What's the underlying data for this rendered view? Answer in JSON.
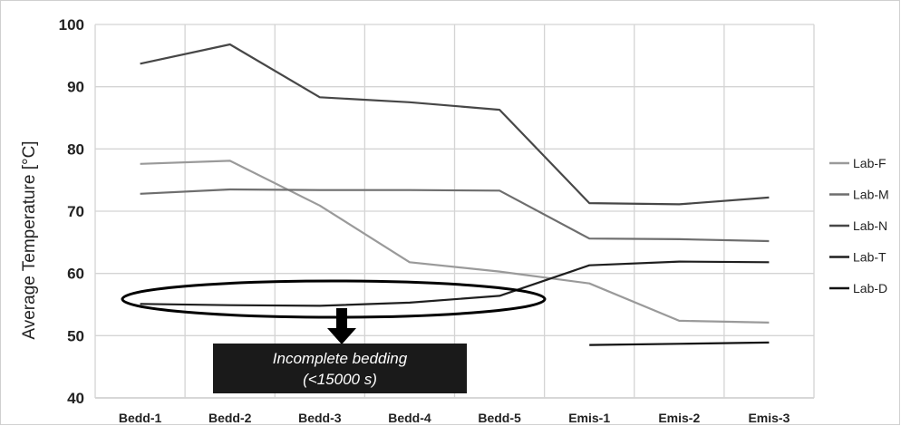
{
  "chart_data": {
    "type": "line",
    "title": "",
    "xlabel": "",
    "ylabel": "Average Temperature  [°C]",
    "ylim": [
      40,
      100
    ],
    "yticks": [
      40,
      50,
      60,
      70,
      80,
      90,
      100
    ],
    "grid": true,
    "legend_position": "right",
    "categories": [
      "Bedd-1",
      "Bedd-2",
      "Bedd-3",
      "Bedd-4",
      "Bedd-5",
      "Emis-1",
      "Emis-2",
      "Emis-3"
    ],
    "series": [
      {
        "name": "Lab-F",
        "color": "#9a9a9a",
        "values": [
          77.6,
          78.1,
          70.9,
          61.8,
          60.3,
          58.4,
          52.4,
          52.1
        ]
      },
      {
        "name": "Lab-M",
        "color": "#6e6e6e",
        "values": [
          72.8,
          73.5,
          73.4,
          73.4,
          73.3,
          65.6,
          65.5,
          65.2
        ]
      },
      {
        "name": "Lab-N",
        "color": "#474747",
        "values": [
          93.7,
          96.8,
          88.3,
          87.5,
          86.3,
          71.3,
          71.1,
          72.2
        ]
      },
      {
        "name": "Lab-T",
        "color": "#1f1f1f",
        "values": [
          55.1,
          54.9,
          54.8,
          55.3,
          56.4,
          61.3,
          61.9,
          61.8
        ]
      },
      {
        "name": "Lab-D",
        "color": "#111111",
        "values": [
          null,
          null,
          null,
          null,
          null,
          48.5,
          48.7,
          48.9
        ]
      }
    ],
    "annotation": {
      "line1": "Incomplete bedding",
      "line2": "(<15000  s)",
      "box_color": "#1a1a1a",
      "text_color": "#ffffff"
    }
  }
}
